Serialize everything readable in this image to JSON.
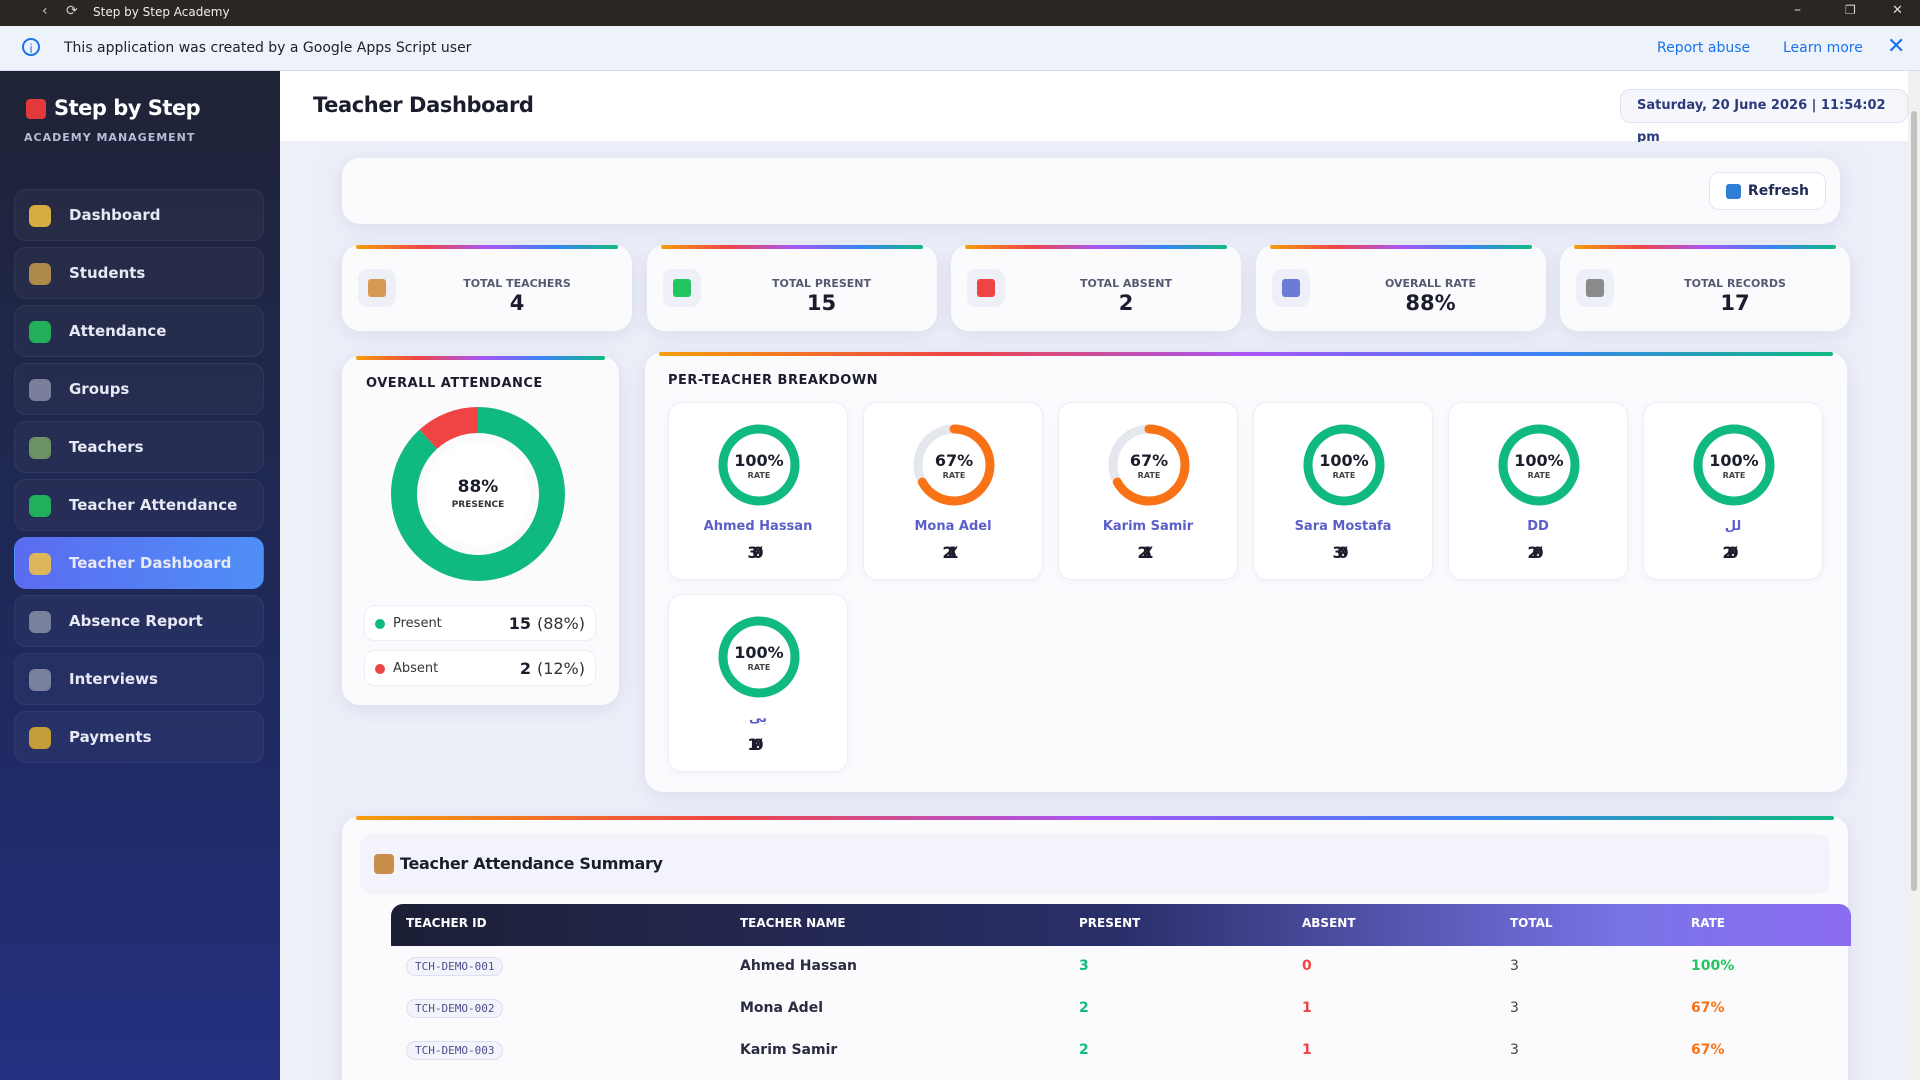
{
  "browser": {
    "title": "Step by Step Academy"
  },
  "banner": {
    "text": "This application was created by a Google Apps Script user",
    "links": [
      "Report abuse",
      "Learn more"
    ]
  },
  "sidebar": {
    "brand": "Step by Step",
    "subtitle": "ACADEMY MANAGEMENT",
    "active": 6,
    "nav": [
      "Dashboard",
      "Students",
      "Attendance",
      "Groups",
      "Teachers",
      "Teacher Attendance",
      "Teacher Dashboard",
      "Absence Report",
      "Interviews",
      "Payments"
    ]
  },
  "header": {
    "title": "Teacher Dashboard",
    "datetime": "Saturday, 20 June 2026 | 11:54:02 pm"
  },
  "toolbar": {
    "button": "Refresh"
  },
  "stats": [
    {
      "label": "TOTAL TEACHERS",
      "value": "4"
    },
    {
      "label": "TOTAL PRESENT",
      "value": "15"
    },
    {
      "label": "TOTAL ABSENT",
      "value": "2"
    },
    {
      "label": "OVERALL RATE",
      "value": "88%"
    },
    {
      "label": "TOTAL RECORDS",
      "value": "17"
    }
  ],
  "overall": {
    "title": "OVERALL ATTENDANCE",
    "percent": "88%",
    "caption": "PRESENCE",
    "legend": [
      {
        "label": "Present",
        "count": 15,
        "pct": "(88%)",
        "color": "#10b981"
      },
      {
        "label": "Absent",
        "count": 2,
        "pct": "(12%)",
        "color": "#ef4444"
      }
    ]
  },
  "breakdown": {
    "title": "PER-TEACHER BREAKDOWN",
    "rate_caption": "RATE",
    "present_symbol": "✓",
    "absent_symbol": "✗",
    "teachers": [
      {
        "name": "Ahmed Hassan",
        "rate": 100,
        "rate_label": "100%",
        "present": 3,
        "absent": 0
      },
      {
        "name": "Mona Adel",
        "rate": 67,
        "rate_label": "67%",
        "present": 2,
        "absent": 1
      },
      {
        "name": "Karim Samir",
        "rate": 67,
        "rate_label": "67%",
        "present": 2,
        "absent": 1
      },
      {
        "name": "Sara Mostafa",
        "rate": 100,
        "rate_label": "100%",
        "present": 3,
        "absent": 0
      },
      {
        "name": "DD",
        "rate": 100,
        "rate_label": "100%",
        "present": 2,
        "absent": 0
      },
      {
        "name": "لل",
        "rate": 100,
        "rate_label": "100%",
        "present": 2,
        "absent": 0
      },
      {
        "name": "بی",
        "rate": 100,
        "rate_label": "100%",
        "present": 1,
        "absent": 0
      }
    ]
  },
  "summary": {
    "title": "Teacher Attendance Summary",
    "columns": [
      "TEACHER ID",
      "TEACHER NAME",
      "PRESENT",
      "ABSENT",
      "TOTAL",
      "RATE"
    ],
    "rows": [
      [
        "TCH-DEMO-001",
        "Ahmed Hassan",
        "3",
        "0",
        "3",
        "100%"
      ],
      [
        "TCH-DEMO-002",
        "Mona Adel",
        "2",
        "1",
        "3",
        "67%"
      ],
      [
        "TCH-DEMO-003",
        "Karim Samir",
        "2",
        "1",
        "3",
        "67%"
      ]
    ]
  }
}
